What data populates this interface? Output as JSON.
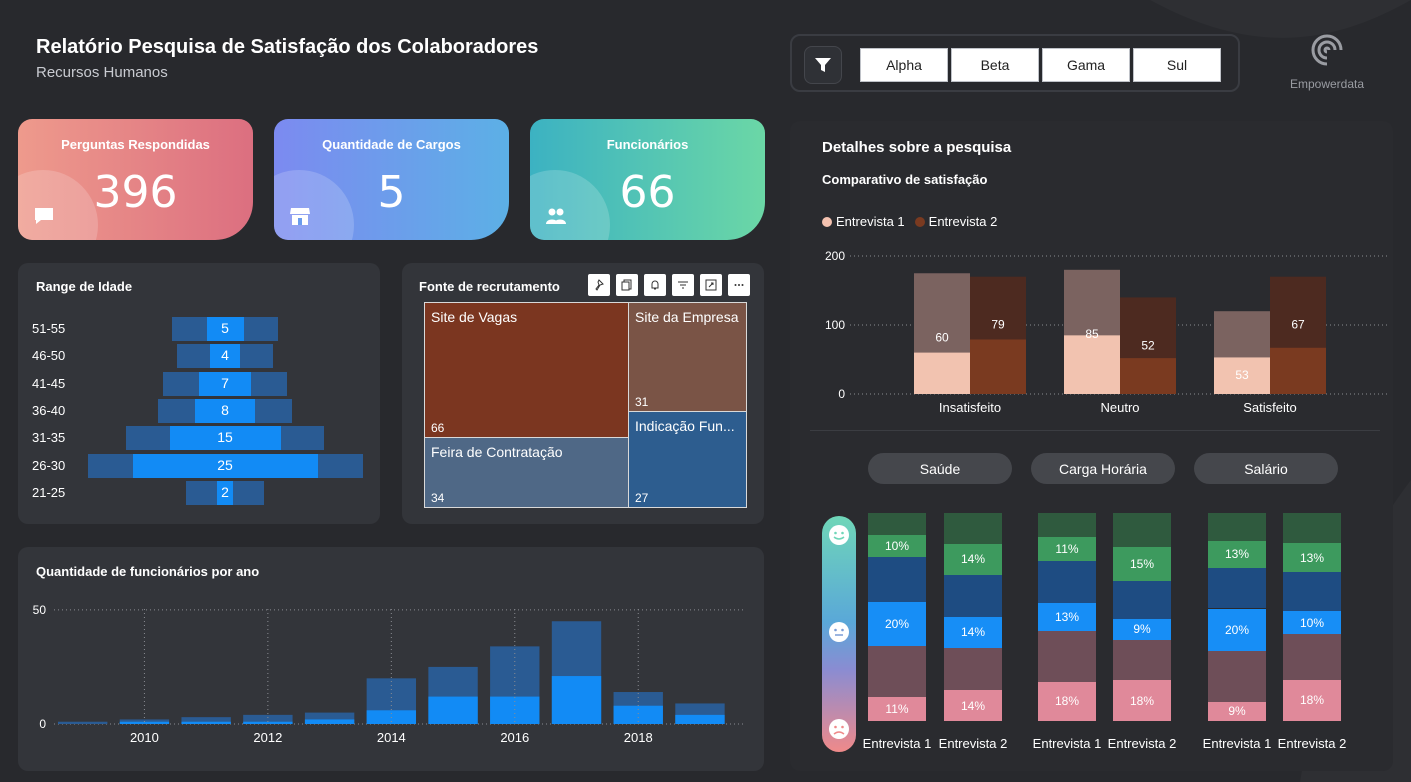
{
  "header": {
    "title": "Relatório Pesquisa de Satisfação dos Colaboradores",
    "subtitle": "Recursos Humanos"
  },
  "filters": {
    "icon": "filter-icon",
    "options": [
      "Alpha",
      "Beta",
      "Gama",
      "Sul"
    ]
  },
  "brand": {
    "name": "Empowerdata",
    "icon": "empowerdata-logo"
  },
  "kpis": [
    {
      "label": "Perguntas Respondidas",
      "value": "396",
      "icon": "chat-icon",
      "color_from": "#ed8a8a",
      "color_to": "#d9687e"
    },
    {
      "label": "Quantidade de Cargos",
      "value": "5",
      "icon": "store-icon",
      "color_from": "#7c8cf0",
      "color_to": "#5aaee8"
    },
    {
      "label": "Funcionários",
      "value": "66",
      "icon": "people-icon",
      "color_from": "#3fb4c0",
      "color_to": "#69d6a8"
    }
  ],
  "age_panel": {
    "title": "Range de Idade"
  },
  "recruit_panel": {
    "title": "Fonte de recrutamento"
  },
  "years_panel": {
    "title": "Quantidade de funcionários por ano"
  },
  "details_panel": {
    "title": "Detalhes sobre a pesquisa",
    "subtitle": "Comparativo de satisfação",
    "legend": [
      "Entrevista 1",
      "Entrevista 2"
    ]
  },
  "category_pills": [
    "Saúde",
    "Carga Horária",
    "Salário"
  ],
  "scale_icons": [
    "smile-icon",
    "neutral-face-icon",
    "sad-face-icon"
  ],
  "interview_labels": [
    "Entrevista",
    "1",
    "Entrevista",
    "2"
  ],
  "colors": {
    "accent_blue": "#128bf5",
    "dark_blue": "#2a5b93",
    "brown": "#7a3a20"
  },
  "chart_data": [
    {
      "type": "bar",
      "title": "Range de Idade",
      "orientation": "horizontal",
      "categories": [
        "51-55",
        "46-50",
        "41-45",
        "36-40",
        "31-35",
        "26-30",
        "21-25"
      ],
      "values": [
        5,
        4,
        7,
        8,
        15,
        25,
        2
      ]
    },
    {
      "type": "heatmap",
      "subtype": "treemap",
      "title": "Fonte de recrutamento",
      "categories": [
        "Site de Vagas",
        "Site da Empresa",
        "Indicação Fun...",
        "Feira de Contratação"
      ],
      "values": [
        66,
        31,
        27,
        34
      ]
    },
    {
      "type": "bar",
      "title": "Quantidade de funcionários por ano",
      "x": [
        2009,
        2010,
        2011,
        2012,
        2013,
        2014,
        2015,
        2016,
        2017,
        2018,
        2019
      ],
      "x_ticks": [
        "2010",
        "2012",
        "2014",
        "2016",
        "2018"
      ],
      "series": [
        {
          "values": [
            1,
            2,
            3,
            4,
            5,
            20,
            25,
            34,
            45,
            14,
            9
          ]
        },
        {
          "values": [
            0,
            1,
            1,
            1,
            2,
            6,
            12,
            12,
            21,
            8,
            4
          ]
        }
      ],
      "ylim": [
        0,
        60
      ],
      "yticks": [
        0,
        50
      ],
      "grid": true
    },
    {
      "type": "bar",
      "title": "Comparativo de satisfação",
      "categories": [
        "Insatisfeito",
        "Neutro",
        "Satisfeito"
      ],
      "series": [
        {
          "name": "Entrevista 1",
          "values": [
            60,
            85,
            53
          ],
          "totals": [
            175,
            180,
            120
          ]
        },
        {
          "name": "Entrevista 2",
          "values": [
            79,
            52,
            67
          ],
          "totals": [
            170,
            140,
            170
          ]
        }
      ],
      "ylim": [
        0,
        200
      ],
      "yticks": [
        0,
        100,
        200
      ],
      "legend": "top-left",
      "grid": true
    },
    {
      "type": "bar",
      "subtype": "stacked-100",
      "groups": [
        {
          "name": "Saúde",
          "bars": [
            {
              "label": "Entrevista 1",
              "segments": [
                10,
                10,
                20,
                20,
                23,
                11
              ],
              "labels": [
                "",
                "10%",
                "",
                "20%",
                "",
                "11%"
              ]
            },
            {
              "label": "Entrevista 2",
              "segments": [
                14,
                14,
                19,
                14,
                19,
                14
              ],
              "labels": [
                "",
                "14%",
                "",
                "14%",
                "",
                "14%"
              ]
            }
          ]
        },
        {
          "name": "Carga Horária",
          "bars": [
            {
              "label": "Entrevista 1",
              "segments": [
                11,
                11,
                19,
                13,
                23,
                18
              ],
              "labels": [
                "",
                "11%",
                "",
                "13%",
                "",
                "18%"
              ]
            },
            {
              "label": "Entrevista 2",
              "segments": [
                15,
                15,
                17,
                9,
                18,
                18
              ],
              "labels": [
                "",
                "15%",
                "",
                "9%",
                "",
                "18%"
              ]
            }
          ]
        },
        {
          "name": "Salário",
          "bars": [
            {
              "label": "Entrevista 1",
              "segments": [
                13,
                13,
                19,
                20,
                24,
                9
              ],
              "labels": [
                "",
                "13%",
                "",
                "20%",
                "",
                "9%"
              ]
            },
            {
              "label": "Entrevista 2",
              "segments": [
                13,
                13,
                17,
                10,
                20,
                18
              ],
              "labels": [
                "",
                "13%",
                "",
                "10%",
                "",
                "18%"
              ]
            }
          ]
        }
      ],
      "segment_colors": [
        "#2f5a3e",
        "#3d9a5e",
        "#1e4c82",
        "#178ef6",
        "#6e4e58",
        "#e0899a"
      ]
    }
  ]
}
